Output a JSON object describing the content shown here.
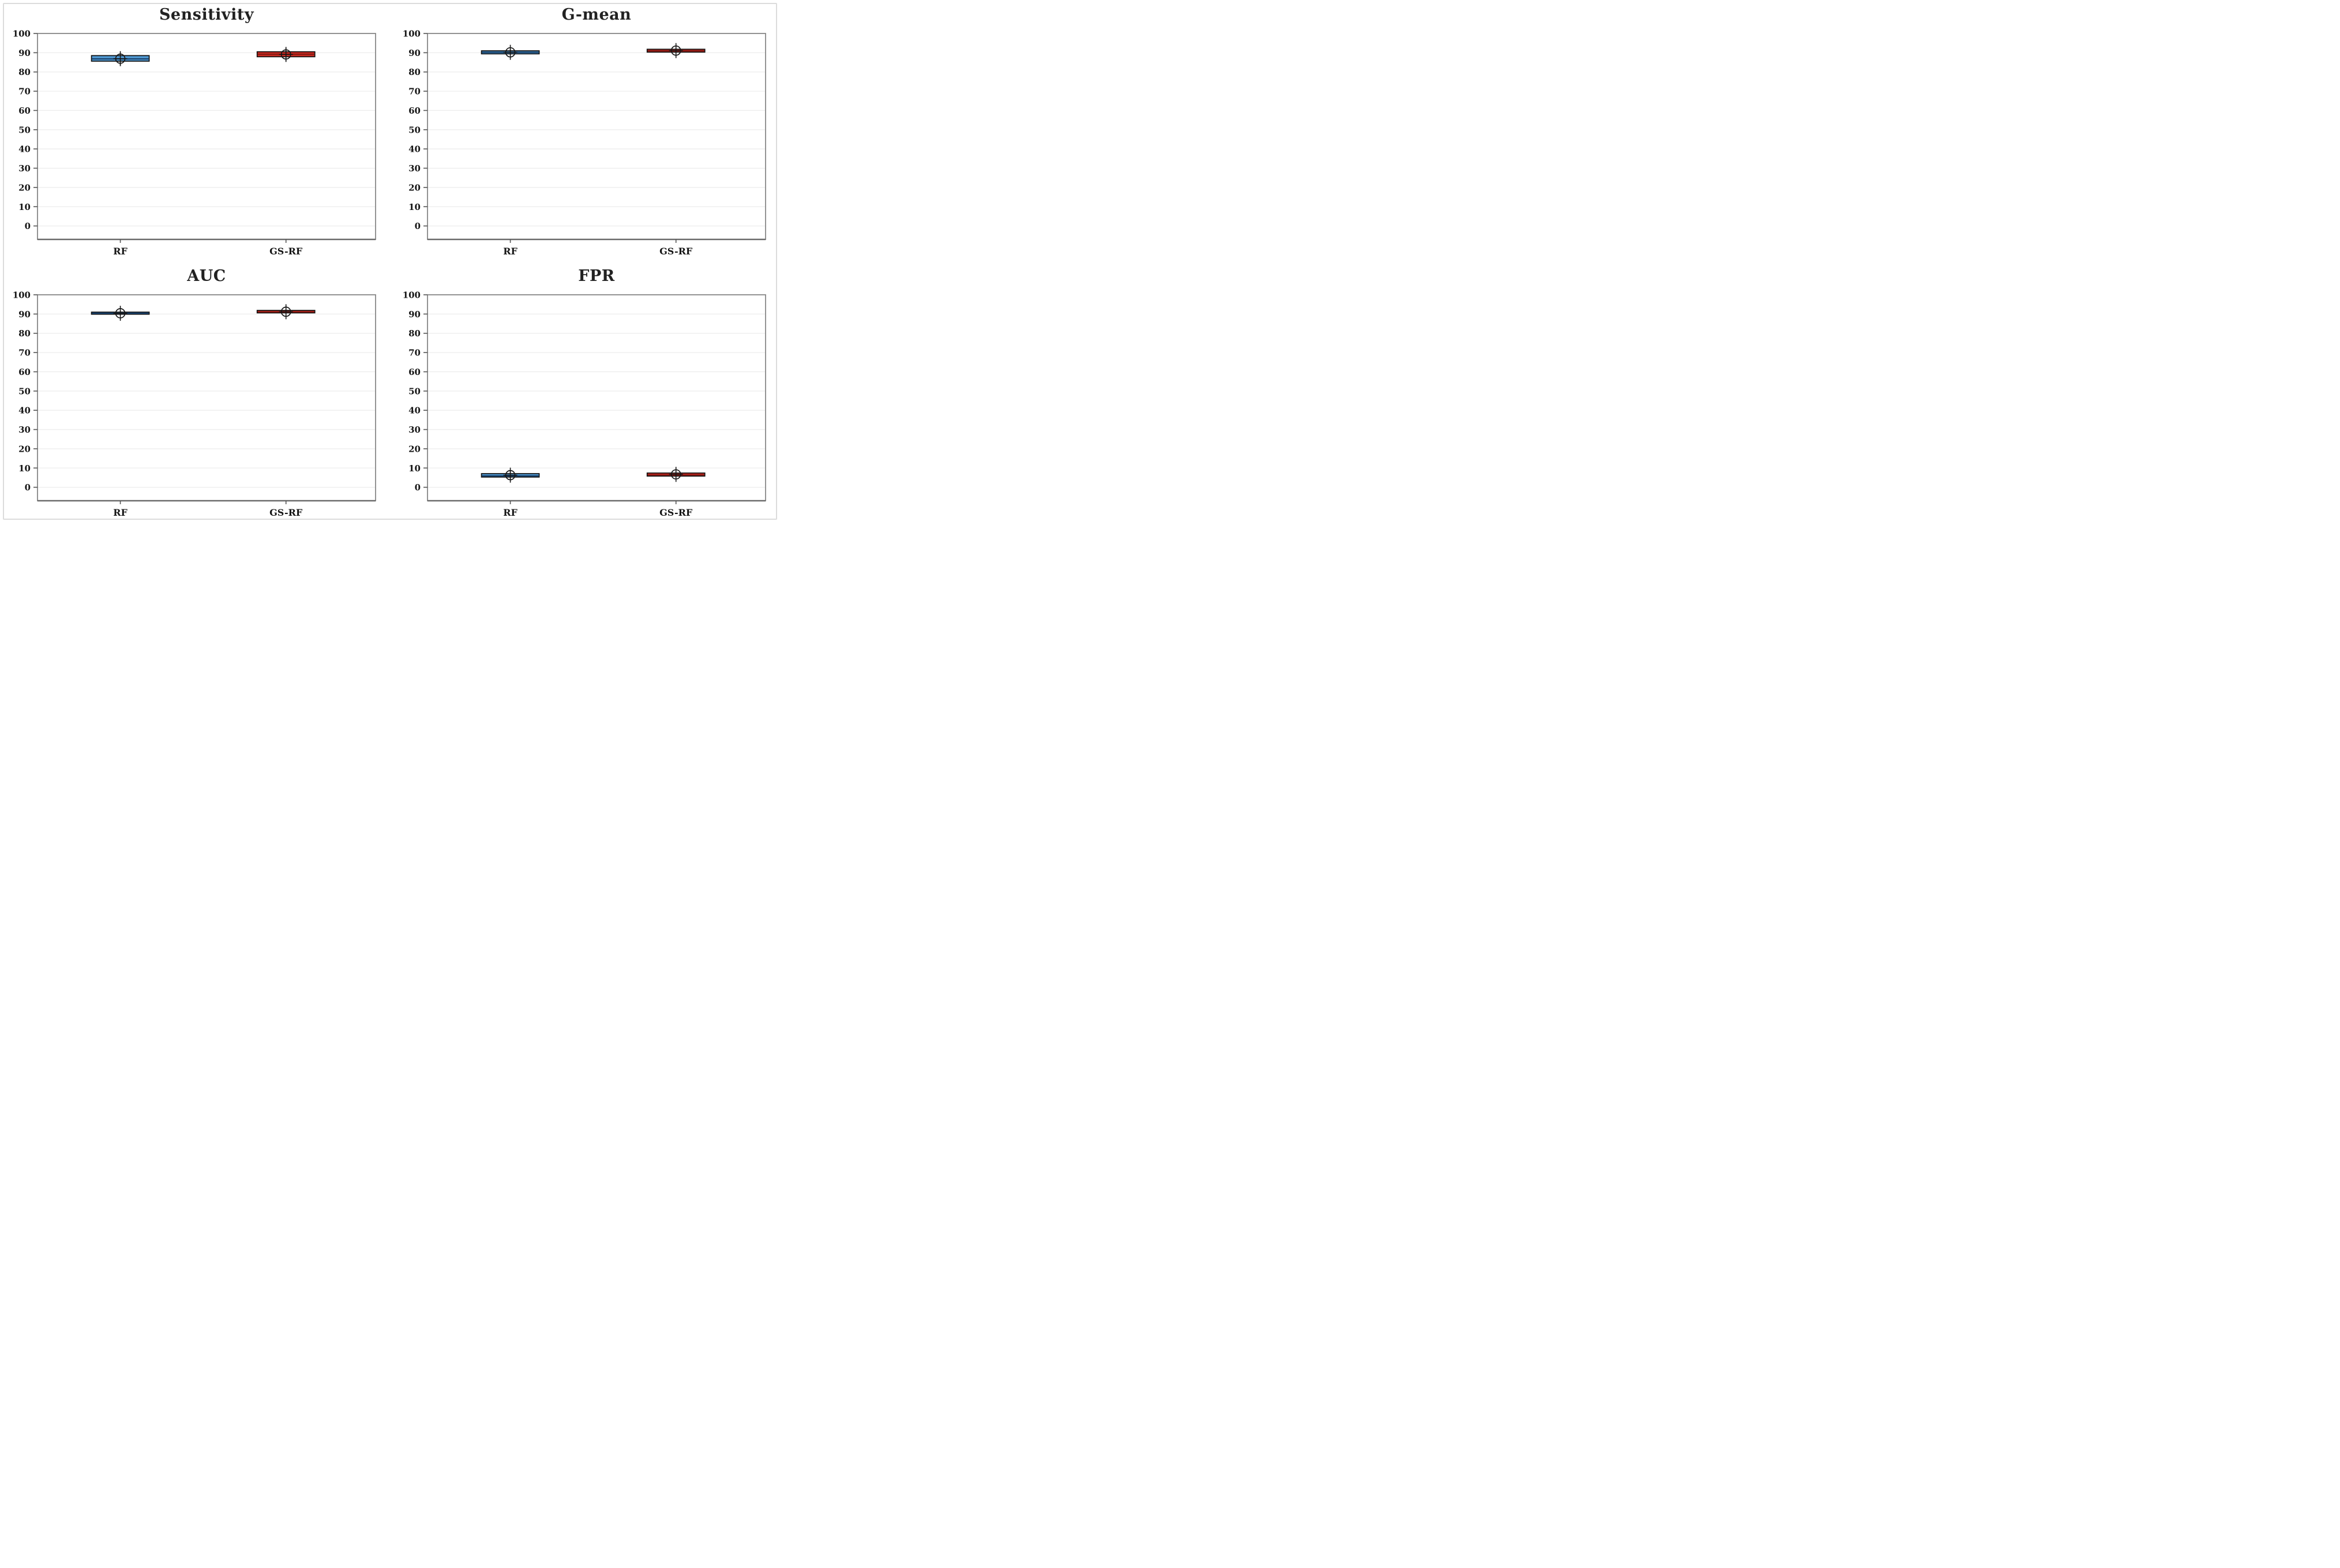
{
  "figure": {
    "background": "#ffffff",
    "outer_border_color": "#dcdcdc"
  },
  "axis": {
    "ylim": [
      0,
      100
    ],
    "y_tick_step": 10,
    "y_tick_labels": [
      "100",
      "90",
      "80",
      "70",
      "60",
      "50",
      "40",
      "30",
      "20",
      "10",
      "0"
    ],
    "grid": true,
    "gridline_color": "#ededed",
    "frame_color": "#878787",
    "bottom_axis_color": "#6a6a6a",
    "tick_color": "#555555",
    "whisker_color": "#161616",
    "box_border_color": "#111111",
    "mean_marker": "circle-plus",
    "legend": "none"
  },
  "chart_data": [
    {
      "type": "box",
      "title": "Sensitivity",
      "categories": [
        "RF",
        "GS-RF"
      ],
      "ylim": [
        0,
        100
      ],
      "series": [
        {
          "name": "RF",
          "fill": "#4f97d0",
          "median_color": "#17406b",
          "whisker_low": 83.5,
          "q1": 85.6,
          "median": 86.8,
          "q3": 88.5,
          "whisker_high": 89.8,
          "mean": 86.9
        },
        {
          "name": "GS-RF",
          "fill": "#ce2a21",
          "median_color": "#871812",
          "whisker_low": 85.4,
          "q1": 87.9,
          "median": 89.2,
          "q3": 90.5,
          "whisker_high": 92.4,
          "mean": 89.1
        }
      ]
    },
    {
      "type": "box",
      "title": "G-mean",
      "categories": [
        "RF",
        "GS-RF"
      ],
      "ylim": [
        0,
        100
      ],
      "series": [
        {
          "name": "RF",
          "fill": "#4f97d0",
          "median_color": "#17406b",
          "whisker_low": 88.8,
          "q1": 89.4,
          "median": 90.2,
          "q3": 91.0,
          "whisker_high": 91.8,
          "mean": 90.2
        },
        {
          "name": "GS-RF",
          "fill": "#ce2a21",
          "median_color": "#871812",
          "whisker_low": 89.7,
          "q1": 90.3,
          "median": 91.0,
          "q3": 91.8,
          "whisker_high": 92.5,
          "mean": 91.1
        }
      ]
    },
    {
      "type": "box",
      "title": "AUC",
      "categories": [
        "RF",
        "GS-RF"
      ],
      "ylim": [
        0,
        100
      ],
      "series": [
        {
          "name": "RF",
          "fill": "#4f97d0",
          "median_color": "#17406b",
          "whisker_low": 89.4,
          "q1": 89.9,
          "median": 90.4,
          "q3": 91.0,
          "whisker_high": 91.7,
          "mean": 90.4
        },
        {
          "name": "GS-RF",
          "fill": "#ce2a21",
          "median_color": "#871812",
          "whisker_low": 90.1,
          "q1": 90.6,
          "median": 91.1,
          "q3": 91.9,
          "whisker_high": 92.5,
          "mean": 91.2
        }
      ]
    },
    {
      "type": "box",
      "title": "FPR",
      "categories": [
        "RF",
        "GS-RF"
      ],
      "ylim": [
        0,
        100
      ],
      "series": [
        {
          "name": "RF",
          "fill": "#4f97d0",
          "median_color": "#17406b",
          "whisker_low": 4.4,
          "q1": 5.3,
          "median": 5.9,
          "q3": 7.1,
          "whisker_high": 8.4,
          "mean": 6.3
        },
        {
          "name": "GS-RF",
          "fill": "#ce2a21",
          "median_color": "#871812",
          "whisker_low": 5.0,
          "q1": 5.8,
          "median": 6.4,
          "q3": 7.4,
          "whisker_high": 8.6,
          "mean": 6.7
        }
      ]
    }
  ]
}
